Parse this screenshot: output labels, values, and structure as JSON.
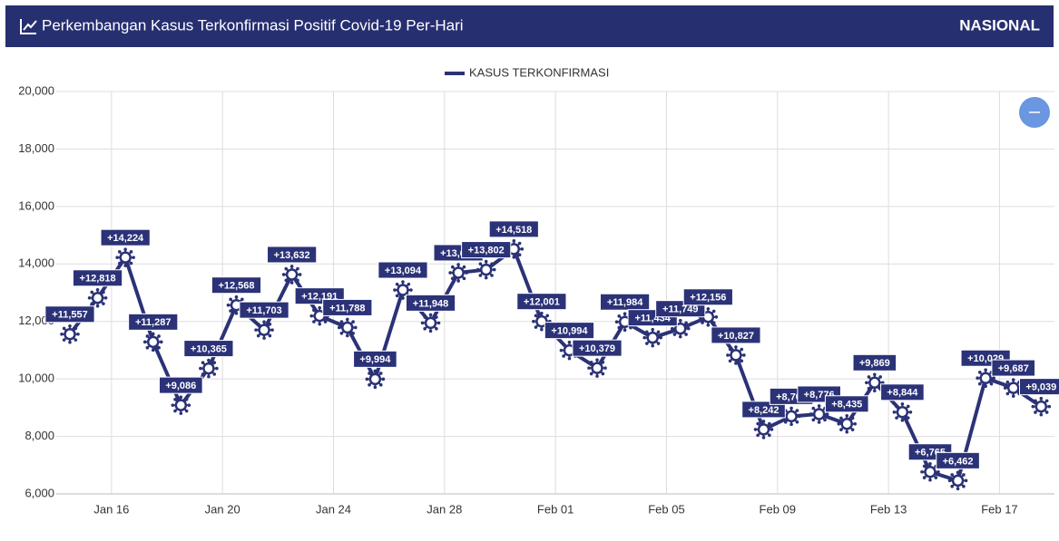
{
  "header": {
    "title": "Perkembangan Kasus Terkonfirmasi Positif Covid-19 Per-Hari",
    "region": "NASIONAL"
  },
  "chart_data": {
    "type": "line",
    "categories": [
      null,
      null,
      "Jan 16",
      null,
      null,
      null,
      "Jan 20",
      null,
      null,
      null,
      "Jan 24",
      null,
      null,
      null,
      "Jan 28",
      null,
      null,
      null,
      "Feb 01",
      null,
      null,
      null,
      "Feb 05",
      null,
      null,
      null,
      "Feb 09",
      null,
      null,
      null,
      "Feb 13",
      null,
      null,
      null,
      "Feb 17",
      null
    ],
    "series": [
      {
        "name": "KASUS TERKONFIRMASI",
        "color": "#2b3277",
        "values": [
          11557,
          12818,
          14224,
          11287,
          9086,
          10365,
          12568,
          11703,
          13632,
          12191,
          11788,
          9994,
          13094,
          11948,
          13695,
          13802,
          14518,
          12001,
          10994,
          10379,
          11984,
          11434,
          11749,
          12156,
          10827,
          8242,
          8700,
          8776,
          8435,
          9869,
          8844,
          6765,
          6462,
          10029,
          9687,
          9039
        ],
        "value_labels": [
          "+11,557",
          "+12,818",
          "+14,224",
          "+11,287",
          "+9,086",
          "+10,365",
          "+12,568",
          "+11,703",
          "+13,632",
          "+12,191",
          "+11,788",
          "+9,994",
          "+13,094",
          "+11,948",
          "+13,695",
          "+13,802",
          "+14,518",
          "+12,001",
          "+10,994",
          "+10,379",
          "+11,984",
          "+11,434",
          "+11,749",
          "+12,156",
          "+10,827",
          "+8,242",
          "+8,700",
          "+8,776",
          "+8,435",
          "+9,869",
          "+8,844",
          "+6,765",
          "+6,462",
          "+10,029",
          "+9,687",
          "+9,039"
        ]
      }
    ],
    "ylim": [
      6000,
      20000
    ],
    "yticks": [
      {
        "value": 6000,
        "label": "6,000"
      },
      {
        "value": 8000,
        "label": "8,000"
      },
      {
        "value": 10000,
        "label": "10,000"
      },
      {
        "value": 12000,
        "label": "12,000"
      },
      {
        "value": 14000,
        "label": "14,000"
      },
      {
        "value": 16000,
        "label": "16,000"
      },
      {
        "value": 18000,
        "label": "18,000"
      },
      {
        "value": 20000,
        "label": "20,000"
      }
    ],
    "grid": true
  }
}
